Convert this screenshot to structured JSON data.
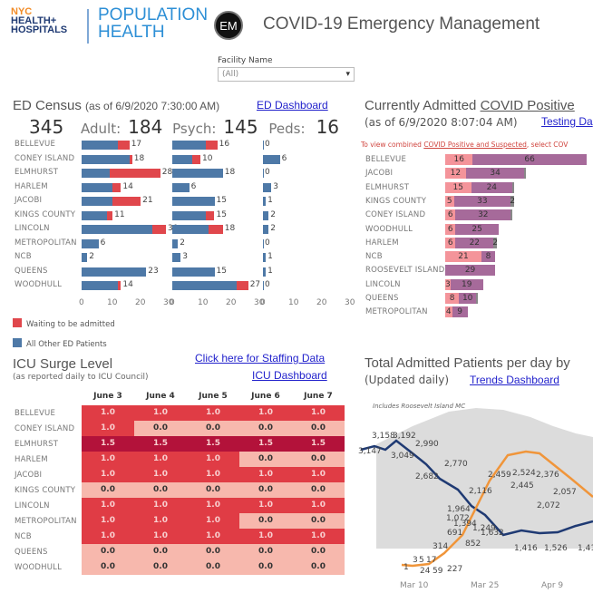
{
  "header": {
    "logo_line1": "NYC",
    "logo_line2": "HEALTH+",
    "logo_line3": "HOSPITALS",
    "logo2_line1": "POPULATION",
    "logo2_line2": "HEALTH",
    "badge": "EM",
    "title": "COVID-19 Emergency Management"
  },
  "filter": {
    "label": "Facility Name",
    "value": "(All)",
    "arrow": "▾"
  },
  "ed": {
    "title": "ED Census",
    "subtitle": "(as of 6/9/2020 7:30:00 AM)",
    "link": "ED Dashboard",
    "total": "345",
    "adult_label": "Adult:",
    "adult": "184",
    "psych_label": "Psych:",
    "psych": "145",
    "peds_label": "Peds:",
    "peds": "16",
    "rows": [
      {
        "name": "BELLEVUE",
        "adult": [
          13,
          4
        ],
        "adult_total": "17",
        "psych": [
          12,
          4
        ],
        "psych_total": "16",
        "peds": "0",
        "peds_v": 0
      },
      {
        "name": "CONEY ISLAND",
        "adult": [
          17,
          1
        ],
        "adult_total": "18",
        "psych": [
          7,
          3
        ],
        "psych_total": "10",
        "peds": "6",
        "peds_v": 6
      },
      {
        "name": "ELMHURST",
        "adult": [
          10,
          18
        ],
        "adult_total": "28",
        "psych": [
          18,
          0
        ],
        "psych_total": "18",
        "peds": "0",
        "peds_v": 0
      },
      {
        "name": "HARLEM",
        "adult": [
          11,
          3
        ],
        "adult_total": "14",
        "psych": [
          6,
          0
        ],
        "psych_total": "6",
        "peds": "3",
        "peds_v": 3
      },
      {
        "name": "JACOBI",
        "adult": [
          11,
          10
        ],
        "adult_total": "21",
        "psych": [
          15,
          0
        ],
        "psych_total": "15",
        "peds": "1",
        "peds_v": 1
      },
      {
        "name": "KINGS COUNTY",
        "adult": [
          9,
          2
        ],
        "adult_total": "11",
        "psych": [
          12,
          3
        ],
        "psych_total": "15",
        "peds": "2",
        "peds_v": 2
      },
      {
        "name": "LINCOLN",
        "adult": [
          25,
          5
        ],
        "adult_total": "30",
        "psych": [
          13,
          5
        ],
        "psych_total": "18",
        "peds": "2",
        "peds_v": 2
      },
      {
        "name": "METROPOLITAN",
        "adult": [
          6,
          0
        ],
        "adult_total": "6",
        "psych": [
          2,
          0
        ],
        "psych_total": "2",
        "peds": "0",
        "peds_v": 0
      },
      {
        "name": "NCB",
        "adult": [
          2,
          0
        ],
        "adult_total": "2",
        "psych": [
          3,
          0
        ],
        "psych_total": "3",
        "peds": "1",
        "peds_v": 1
      },
      {
        "name": "QUEENS",
        "adult": [
          23,
          0
        ],
        "adult_total": "23",
        "psych": [
          15,
          0
        ],
        "psych_total": "15",
        "peds": "1",
        "peds_v": 1
      },
      {
        "name": "WOODHULL",
        "adult": [
          13,
          1
        ],
        "adult_total": "14",
        "psych": [
          23,
          4
        ],
        "psych_total": "27",
        "peds": "0",
        "peds_v": 0
      }
    ],
    "ticks": [
      "0",
      "10",
      "20",
      "30"
    ],
    "legend": [
      {
        "label": "Waiting to be admitted",
        "color": "#e0474c"
      },
      {
        "label": "All Other ED Patients",
        "color": "#4e79a7"
      }
    ]
  },
  "covid": {
    "title_pre": "Currently Admitted ",
    "title_link": "COVID Positive",
    "subtitle": "(as of 6/9/2020 8:07:04 AM)",
    "link": "Testing Da",
    "note_pre": "To view combined ",
    "note_link": "COVID Positive and Suspected",
    "note_post": ", select COV",
    "rows": [
      {
        "name": "BELLEVUE",
        "a": 16,
        "b": 66,
        "c": 0,
        "c_label": ""
      },
      {
        "name": "JACOBI",
        "a": 12,
        "b": 34,
        "c": 1,
        "c_label": ""
      },
      {
        "name": "ELMHURST",
        "a": 15,
        "b": 24,
        "c": 1,
        "c_label": ""
      },
      {
        "name": "KINGS COUNTY",
        "a": 5,
        "b": 33,
        "c": 2,
        "c_label": "2"
      },
      {
        "name": "CONEY ISLAND",
        "a": 6,
        "b": 32,
        "c": 1,
        "c_label": ""
      },
      {
        "name": "WOODHULL",
        "a": 6,
        "b": 25,
        "c": 0,
        "c_label": ""
      },
      {
        "name": "HARLEM",
        "a": 6,
        "b": 22,
        "c": 2,
        "c_label": "2"
      },
      {
        "name": "NCB",
        "a": 21,
        "b": 8,
        "c": 0,
        "c_label": ""
      },
      {
        "name": "ROOSEVELT ISLAND",
        "a": 0,
        "b": 29,
        "c": 0,
        "c_label": ""
      },
      {
        "name": "LINCOLN",
        "a": 3,
        "b": 19,
        "c": 0,
        "c_label": ""
      },
      {
        "name": "QUEENS",
        "a": 8,
        "b": 10,
        "c": 1,
        "c_label": ""
      },
      {
        "name": "METROPOLITAN",
        "a": 4,
        "b": 9,
        "c": 0,
        "c_label": ""
      }
    ]
  },
  "icu": {
    "title": "ICU Surge Level",
    "subtitle": "(as reported daily to ICU Council)",
    "link1": "Click here for Staffing Data",
    "link2": "ICU Dashboard",
    "cols": [
      "June 3",
      "June 4",
      "June 5",
      "June 6",
      "June 7"
    ],
    "rows": [
      {
        "name": "BELLEVUE",
        "v": [
          "1.0",
          "1.0",
          "1.0",
          "1.0",
          "1.0"
        ]
      },
      {
        "name": "CONEY ISLAND",
        "v": [
          "1.0",
          "0.0",
          "0.0",
          "0.0",
          "0.0"
        ]
      },
      {
        "name": "ELMHURST",
        "v": [
          "1.5",
          "1.5",
          "1.5",
          "1.5",
          "1.5"
        ]
      },
      {
        "name": "HARLEM",
        "v": [
          "1.0",
          "1.0",
          "1.0",
          "0.0",
          "0.0"
        ]
      },
      {
        "name": "JACOBI",
        "v": [
          "1.0",
          "1.0",
          "1.0",
          "1.0",
          "1.0"
        ]
      },
      {
        "name": "KINGS COUNTY",
        "v": [
          "0.0",
          "0.0",
          "0.0",
          "0.0",
          "0.0"
        ]
      },
      {
        "name": "LINCOLN",
        "v": [
          "1.0",
          "1.0",
          "1.0",
          "1.0",
          "1.0"
        ]
      },
      {
        "name": "METROPOLITAN",
        "v": [
          "1.0",
          "1.0",
          "1.0",
          "0.0",
          "0.0"
        ]
      },
      {
        "name": "NCB",
        "v": [
          "1.0",
          "1.0",
          "1.0",
          "1.0",
          "1.0"
        ]
      },
      {
        "name": "QUEENS",
        "v": [
          "0.0",
          "0.0",
          "0.0",
          "0.0",
          "0.0"
        ]
      },
      {
        "name": "WOODHULL",
        "v": [
          "0.0",
          "0.0",
          "0.0",
          "0.0",
          "0.0"
        ]
      }
    ],
    "colors": {
      "0.0": "#f7b8ad",
      "1.0": "#e03c45",
      "1.5": "#b3123a"
    }
  },
  "trend": {
    "title": "Total Admitted Patients per day by",
    "subtitle": "(Updated daily)",
    "link": "Trends Dashboard",
    "note": "Includes Roosevelt Island MC",
    "xticks": [
      "Mar 10",
      "Mar 25",
      "Apr 9",
      "Apr 24"
    ],
    "blue_labels": [
      "3,147",
      "3,158",
      "3,192",
      "3,049",
      "2,990",
      "2,682",
      "2,770",
      "1,964",
      "1,394",
      "1,632",
      "1,416",
      "1,526",
      "1,41"
    ],
    "orange_labels": [
      "1",
      "3",
      "5",
      "17",
      "24",
      "59",
      "227",
      "314",
      "691",
      "852",
      "1,072",
      "1,249",
      "2,116",
      "2,459",
      "2,524",
      "2,445",
      "2,376",
      "2,072",
      "2,057"
    ]
  }
}
